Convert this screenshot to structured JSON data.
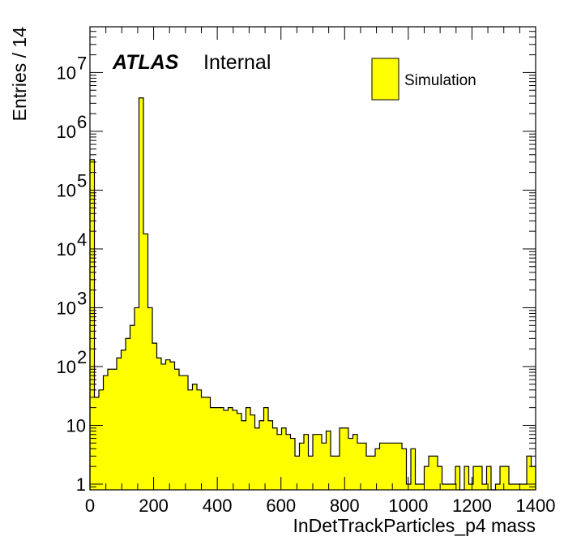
{
  "chart_data": {
    "type": "bar",
    "xlabel": "InDetTrackParticles_p4 mass",
    "ylabel": "Entries / 14",
    "bin_width": 14,
    "xlim": [
      0,
      1400
    ],
    "ylim": [
      0.8,
      60000000
    ],
    "yscale": "log",
    "x_ticks": [
      0,
      200,
      400,
      600,
      800,
      1000,
      1200,
      1400
    ],
    "y_ticks": [
      {
        "value": 1,
        "base": "1",
        "exp": ""
      },
      {
        "value": 10,
        "base": "10",
        "exp": ""
      },
      {
        "value": 100,
        "base": "10",
        "exp": "2"
      },
      {
        "value": 1000,
        "base": "10",
        "exp": "3"
      },
      {
        "value": 10000,
        "base": "10",
        "exp": "4"
      },
      {
        "value": 100000,
        "base": "10",
        "exp": "5"
      },
      {
        "value": 1000000,
        "base": "10",
        "exp": "6"
      },
      {
        "value": 10000000,
        "base": "10",
        "exp": "7"
      }
    ],
    "fill_color": "#ffff00",
    "edge_color": "#000000",
    "atlas_label": "ATLAS",
    "atlas_status": "Internal",
    "legend": [
      {
        "label": "Simulation",
        "color": "#ffff00"
      }
    ],
    "legend_position": "top-right",
    "series": [
      {
        "name": "Simulation",
        "values": [
          330000,
          30,
          40,
          70,
          90,
          90,
          140,
          190,
          300,
          500,
          1000,
          3700000,
          18000,
          1000,
          250,
          140,
          110,
          130,
          120,
          90,
          70,
          70,
          40,
          50,
          40,
          30,
          30,
          20,
          20,
          20,
          18,
          20,
          18,
          16,
          12,
          20,
          15,
          9,
          12,
          20,
          12,
          9,
          7,
          9,
          7,
          6,
          3,
          5,
          7,
          3,
          7,
          7,
          5,
          8,
          3,
          3,
          9,
          9,
          6,
          7,
          5,
          5,
          3,
          3,
          4,
          5,
          5,
          5,
          5,
          5,
          4,
          1,
          4,
          1,
          1,
          2,
          3,
          3,
          2,
          1,
          1,
          1,
          2,
          0,
          2,
          1,
          2,
          2,
          1,
          2,
          0,
          1,
          2,
          2,
          1,
          1,
          1,
          1,
          3,
          2
        ]
      }
    ]
  }
}
